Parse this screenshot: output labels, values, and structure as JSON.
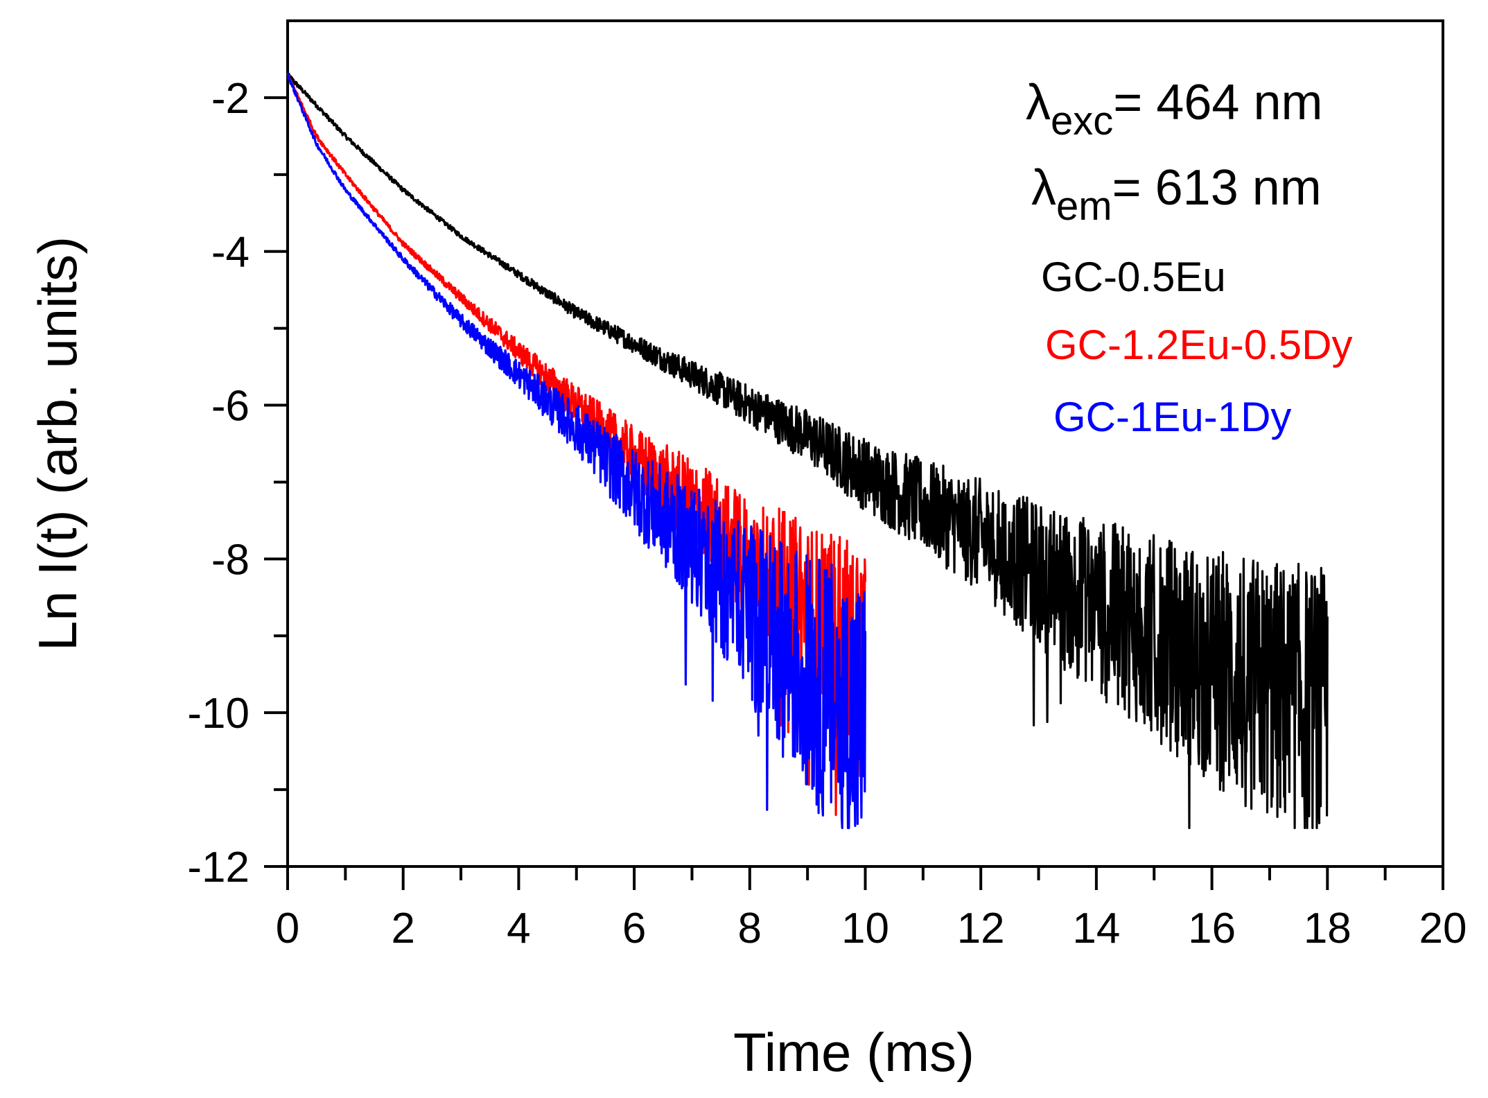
{
  "chart_data": {
    "type": "line",
    "xlabel": "Time (ms)",
    "ylabel": "Ln I(t) (arb. units)",
    "xlim": [
      0,
      20
    ],
    "ylim": [
      -12,
      -1
    ],
    "x_ticks": [
      0,
      2,
      4,
      6,
      8,
      10,
      12,
      14,
      16,
      18,
      20
    ],
    "y_ticks": [
      -2,
      -4,
      -6,
      -8,
      -10,
      -12
    ],
    "grid": false,
    "legend_position": "top-right",
    "annotations": [
      {
        "symbol": "λ",
        "subscript": "exc",
        "text": "= 464 nm"
      },
      {
        "symbol": "λ",
        "subscript": "em",
        "text": "= 613 nm"
      }
    ],
    "series": [
      {
        "name": "GC-0.5Eu",
        "color": "#000000",
        "x_end": 18,
        "noise_floor": -11.5,
        "points": [
          [
            0,
            -1.7
          ],
          [
            1,
            -2.5
          ],
          [
            2,
            -3.2
          ],
          [
            3,
            -3.8
          ],
          [
            4,
            -4.3
          ],
          [
            5,
            -4.8
          ],
          [
            6,
            -5.2
          ],
          [
            7,
            -5.6
          ],
          [
            8,
            -6.0
          ],
          [
            9,
            -6.4
          ],
          [
            10,
            -6.9
          ],
          [
            11,
            -7.3
          ],
          [
            12,
            -7.7
          ],
          [
            13,
            -8.2
          ],
          [
            14,
            -8.6
          ],
          [
            15,
            -9.0
          ],
          [
            16,
            -9.4
          ],
          [
            17,
            -9.7
          ],
          [
            18,
            -10.0
          ]
        ]
      },
      {
        "name": "GC-1.2Eu-0.5Dy",
        "color": "#ff0000",
        "x_end": 10,
        "noise_floor": -11.5,
        "points": [
          [
            0,
            -1.7
          ],
          [
            0.5,
            -2.5
          ],
          [
            1,
            -3.0
          ],
          [
            2,
            -3.9
          ],
          [
            3,
            -4.6
          ],
          [
            4,
            -5.3
          ],
          [
            5,
            -6.0
          ],
          [
            6,
            -6.7
          ],
          [
            7,
            -7.3
          ],
          [
            8,
            -8.0
          ],
          [
            9,
            -8.7
          ],
          [
            10,
            -9.4
          ]
        ]
      },
      {
        "name": "GC-1Eu-1Dy",
        "color": "#0000ff",
        "x_end": 10,
        "noise_floor": -11.5,
        "points": [
          [
            0,
            -1.7
          ],
          [
            0.5,
            -2.6
          ],
          [
            1,
            -3.2
          ],
          [
            2,
            -4.1
          ],
          [
            3,
            -4.9
          ],
          [
            4,
            -5.6
          ],
          [
            5,
            -6.3
          ],
          [
            6,
            -7.1
          ],
          [
            7,
            -7.8
          ],
          [
            8,
            -8.7
          ],
          [
            9,
            -9.5
          ],
          [
            10,
            -10.2
          ]
        ]
      }
    ]
  }
}
